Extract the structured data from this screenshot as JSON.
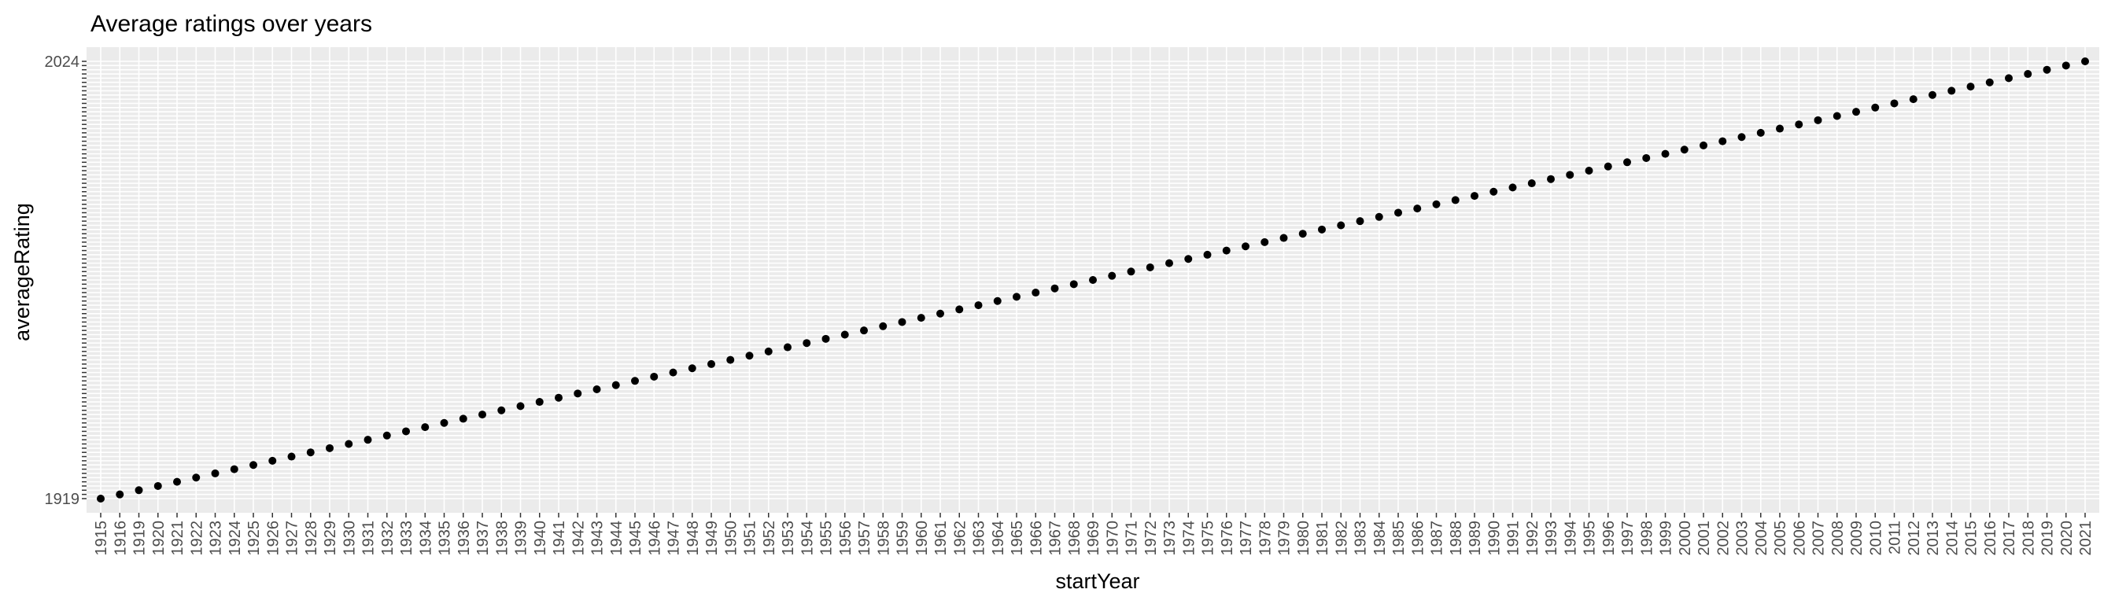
{
  "chart_data": {
    "type": "scatter",
    "title": "Average ratings over years",
    "xlabel": "startYear",
    "ylabel": "averageRating",
    "x": [
      "1915",
      "1916",
      "1919",
      "1920",
      "1921",
      "1922",
      "1923",
      "1924",
      "1925",
      "1926",
      "1927",
      "1928",
      "1929",
      "1930",
      "1931",
      "1932",
      "1933",
      "1934",
      "1935",
      "1936",
      "1937",
      "1938",
      "1939",
      "1940",
      "1941",
      "1942",
      "1943",
      "1944",
      "1945",
      "1946",
      "1947",
      "1948",
      "1949",
      "1950",
      "1951",
      "1952",
      "1953",
      "1954",
      "1955",
      "1956",
      "1957",
      "1958",
      "1959",
      "1960",
      "1961",
      "1962",
      "1963",
      "1964",
      "1965",
      "1966",
      "1967",
      "1968",
      "1969",
      "1970",
      "1971",
      "1972",
      "1973",
      "1974",
      "1975",
      "1976",
      "1977",
      "1978",
      "1979",
      "1980",
      "1981",
      "1982",
      "1983",
      "1984",
      "1985",
      "1986",
      "1987",
      "1988",
      "1989",
      "1990",
      "1991",
      "1992",
      "1993",
      "1994",
      "1995",
      "1996",
      "1997",
      "1998",
      "1999",
      "2000",
      "2001",
      "2002",
      "2003",
      "2004",
      "2005",
      "2006",
      "2007",
      "2008",
      "2009",
      "2010",
      "2011",
      "2012",
      "2013",
      "2014",
      "2015",
      "2016",
      "2017",
      "2018",
      "2019",
      "2020",
      "2021"
    ],
    "y_note_visible": [
      "1919",
      "2024"
    ],
    "grid": true,
    "point_color": "#000000",
    "panel_background": "#ebebeb",
    "grid_color": "#ffffff"
  }
}
